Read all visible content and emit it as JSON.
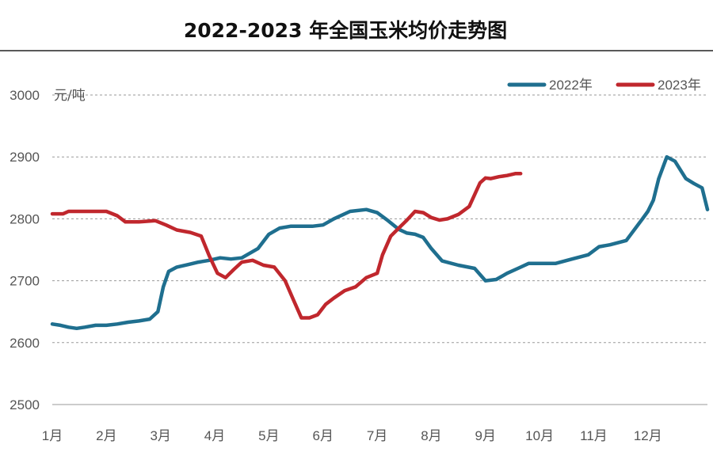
{
  "chart_data": {
    "type": "line",
    "title": "2022-2023 年全国玉米均价走势图",
    "unit": "元/吨",
    "ylim": [
      2500,
      3000
    ],
    "yticks": [
      "2500",
      "2600",
      "2700",
      "2800",
      "2900",
      "3000"
    ],
    "xlim": [
      0,
      12.1
    ],
    "xticks": [
      "1月",
      "2月",
      "3月",
      "4月",
      "5月",
      "6月",
      "7月",
      "8月",
      "9月",
      "10月",
      "11月",
      "12月"
    ],
    "grid": true,
    "legend": "top-right",
    "series": [
      {
        "name": "2022年",
        "color": "#1F6F8F",
        "x": [
          0,
          0.15,
          0.3,
          0.45,
          0.6,
          0.8,
          1.0,
          1.2,
          1.4,
          1.6,
          1.8,
          1.95,
          2.05,
          2.15,
          2.3,
          2.5,
          2.7,
          2.9,
          3.1,
          3.3,
          3.5,
          3.8,
          4.0,
          4.2,
          4.4,
          4.6,
          4.8,
          5.0,
          5.2,
          5.5,
          5.8,
          6.0,
          6.2,
          6.4,
          6.55,
          6.7,
          6.85,
          7.0,
          7.2,
          7.5,
          7.8,
          8.0,
          8.2,
          8.4,
          8.6,
          8.8,
          9.0,
          9.3,
          9.6,
          9.9,
          10.1,
          10.3,
          10.6,
          10.9,
          11.0,
          11.1,
          11.2,
          11.35,
          11.5,
          11.7,
          11.85,
          12.0,
          12.1
        ],
        "y": [
          2630,
          2628,
          2625,
          2623,
          2625,
          2628,
          2628,
          2630,
          2633,
          2635,
          2638,
          2650,
          2690,
          2715,
          2722,
          2726,
          2730,
          2733,
          2737,
          2735,
          2737,
          2752,
          2775,
          2785,
          2788,
          2788,
          2788,
          2790,
          2800,
          2812,
          2815,
          2810,
          2797,
          2783,
          2777,
          2775,
          2770,
          2752,
          2732,
          2725,
          2720,
          2700,
          2702,
          2712,
          2720,
          2728,
          2728,
          2728,
          2735,
          2742,
          2755,
          2758,
          2765,
          2800,
          2812,
          2830,
          2865,
          2900,
          2893,
          2865,
          2857,
          2850,
          2815
        ]
      },
      {
        "name": "2023年",
        "color": "#C0272D",
        "x": [
          0,
          0.2,
          0.3,
          0.5,
          0.7,
          0.9,
          1.0,
          1.2,
          1.35,
          1.6,
          1.9,
          2.1,
          2.3,
          2.55,
          2.75,
          2.9,
          3.05,
          3.2,
          3.35,
          3.5,
          3.7,
          3.9,
          4.1,
          4.3,
          4.45,
          4.6,
          4.75,
          4.9,
          5.05,
          5.2,
          5.4,
          5.6,
          5.8,
          6.0,
          6.1,
          6.25,
          6.4,
          6.55,
          6.7,
          6.85,
          7.0,
          7.15,
          7.3,
          7.5,
          7.7,
          7.9,
          8.0,
          8.1,
          8.25,
          8.4,
          8.55,
          8.65
        ],
        "y": [
          2808,
          2808,
          2812,
          2812,
          2812,
          2812,
          2812,
          2805,
          2795,
          2795,
          2797,
          2790,
          2782,
          2778,
          2772,
          2740,
          2712,
          2705,
          2718,
          2730,
          2733,
          2725,
          2722,
          2700,
          2670,
          2640,
          2640,
          2645,
          2662,
          2672,
          2684,
          2690,
          2705,
          2712,
          2742,
          2772,
          2785,
          2798,
          2812,
          2810,
          2802,
          2798,
          2800,
          2807,
          2820,
          2858,
          2866,
          2865,
          2868,
          2870,
          2873,
          2873
        ]
      }
    ]
  }
}
